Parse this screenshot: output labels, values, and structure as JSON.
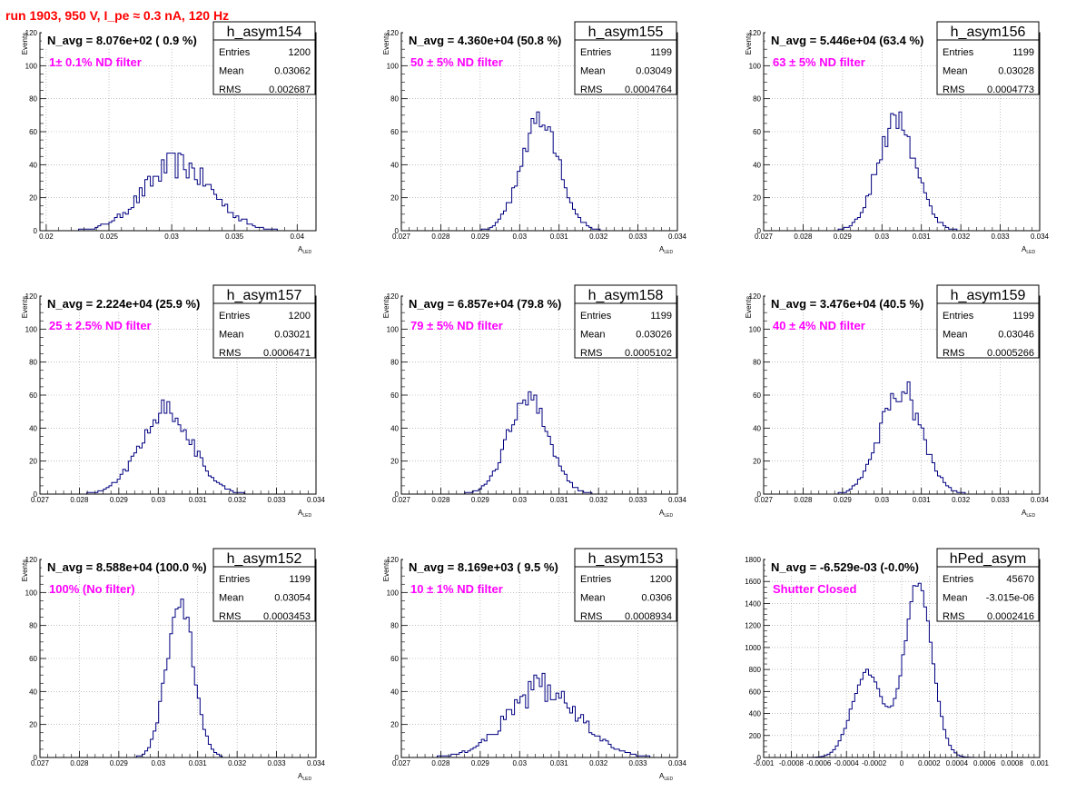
{
  "run_title": "run 1903,   950 V, I_pe ≈ 0.3 nA, 120 Hz",
  "chart_data": [
    {
      "type": "histogram",
      "name": "h_asym154",
      "title": "N_avg = 8.076e+02 ( 0.9 %)",
      "annotation": "1± 0.1% ND filter",
      "stats": [
        {
          "label": "Entries",
          "value": "1200"
        },
        {
          "label": "Mean",
          "value": "0.03062"
        },
        {
          "label": "RMS",
          "value": "0.002687"
        }
      ],
      "xlabel": "A",
      "xlabel_sub": "LED",
      "ylabel": "Events",
      "xlim": [
        0.0195,
        0.0415
      ],
      "ylim": [
        0,
        120
      ],
      "xticks": [
        0.02,
        0.025,
        0.03,
        0.035,
        0.04
      ],
      "xtick_labels": [
        "0.02",
        "0.025",
        "0.03",
        "0.035",
        "0.04"
      ],
      "yticks": [
        0,
        20,
        40,
        60,
        80,
        100,
        120
      ],
      "ytick_labels": [
        "0",
        "20",
        "40",
        "60",
        "80",
        "100",
        "120"
      ],
      "peaks": [
        {
          "mu": 0.0305,
          "sigma": 0.0027,
          "amp": 40
        }
      ],
      "noise": 0.22
    },
    {
      "type": "histogram",
      "name": "h_asym155",
      "title": "N_avg = 4.360e+04 (50.8 %)",
      "annotation": "50 ± 5% ND filter",
      "stats": [
        {
          "label": "Entries",
          "value": "1199"
        },
        {
          "label": "Mean",
          "value": "0.03049"
        },
        {
          "label": "RMS",
          "value": "0.0004764"
        }
      ],
      "xlabel": "A",
      "xlabel_sub": "LED",
      "ylabel": "Events",
      "xlim": [
        0.027,
        0.034
      ],
      "ylim": [
        0,
        120
      ],
      "xticks": [
        0.027,
        0.028,
        0.029,
        0.03,
        0.031,
        0.032,
        0.033,
        0.034
      ],
      "xtick_labels": [
        "0.027",
        "0.028",
        "0.029",
        "0.03",
        "0.031",
        "0.032",
        "0.033",
        "0.034"
      ],
      "yticks": [
        0,
        20,
        40,
        60,
        80,
        100,
        120
      ],
      "ytick_labels": [
        "0",
        "20",
        "40",
        "60",
        "80",
        "100",
        "120"
      ],
      "peaks": [
        {
          "mu": 0.03052,
          "sigma": 0.00048,
          "amp": 68
        }
      ],
      "noise": 0.12
    },
    {
      "type": "histogram",
      "name": "h_asym156",
      "title": "N_avg = 5.446e+04 (63.4 %)",
      "annotation": "63 ± 5% ND filter",
      "stats": [
        {
          "label": "Entries",
          "value": "1199"
        },
        {
          "label": "Mean",
          "value": "0.03028"
        },
        {
          "label": "RMS",
          "value": "0.0004773"
        }
      ],
      "xlabel": "A",
      "xlabel_sub": "LED",
      "ylabel": "Events",
      "xlim": [
        0.027,
        0.034
      ],
      "ylim": [
        0,
        120
      ],
      "xticks": [
        0.027,
        0.028,
        0.029,
        0.03,
        0.031,
        0.032,
        0.033,
        0.034
      ],
      "xtick_labels": [
        "0.027",
        "0.028",
        "0.029",
        "0.03",
        "0.031",
        "0.032",
        "0.033",
        "0.034"
      ],
      "yticks": [
        0,
        20,
        40,
        60,
        80,
        100,
        120
      ],
      "ytick_labels": [
        "0",
        "20",
        "40",
        "60",
        "80",
        "100",
        "120"
      ],
      "peaks": [
        {
          "mu": 0.03038,
          "sigma": 0.00048,
          "amp": 68
        }
      ],
      "noise": 0.14
    },
    {
      "type": "histogram",
      "name": "h_asym157",
      "title": "N_avg = 2.224e+04 (25.9 %)",
      "annotation": "25 ± 2.5% ND filter",
      "stats": [
        {
          "label": "Entries",
          "value": "1200"
        },
        {
          "label": "Mean",
          "value": "0.03021"
        },
        {
          "label": "RMS",
          "value": "0.0006471"
        }
      ],
      "xlabel": "A",
      "xlabel_sub": "LED",
      "ylabel": "Events",
      "xlim": [
        0.027,
        0.034
      ],
      "ylim": [
        0,
        120
      ],
      "xticks": [
        0.027,
        0.028,
        0.029,
        0.03,
        0.031,
        0.032,
        0.033,
        0.034
      ],
      "xtick_labels": [
        "0.027",
        "0.028",
        "0.029",
        "0.03",
        "0.031",
        "0.032",
        "0.033",
        "0.034"
      ],
      "yticks": [
        0,
        20,
        40,
        60,
        80,
        100,
        120
      ],
      "ytick_labels": [
        "0",
        "20",
        "40",
        "60",
        "80",
        "100",
        "120"
      ],
      "peaks": [
        {
          "mu": 0.0302,
          "sigma": 0.00065,
          "amp": 52
        }
      ],
      "noise": 0.14
    },
    {
      "type": "histogram",
      "name": "h_asym158",
      "title": "N_avg = 6.857e+04 (79.8 %)",
      "annotation": "79 ± 5% ND filter",
      "stats": [
        {
          "label": "Entries",
          "value": "1199"
        },
        {
          "label": "Mean",
          "value": "0.03026"
        },
        {
          "label": "RMS",
          "value": "0.0005102"
        }
      ],
      "xlabel": "A",
      "xlabel_sub": "LED",
      "ylabel": "Events",
      "xlim": [
        0.027,
        0.034
      ],
      "ylim": [
        0,
        120
      ],
      "xticks": [
        0.027,
        0.028,
        0.029,
        0.03,
        0.031,
        0.032,
        0.033,
        0.034
      ],
      "xtick_labels": [
        "0.027",
        "0.028",
        "0.029",
        "0.03",
        "0.031",
        "0.032",
        "0.033",
        "0.034"
      ],
      "yticks": [
        0,
        20,
        40,
        60,
        80,
        100,
        120
      ],
      "ytick_labels": [
        "0",
        "20",
        "40",
        "60",
        "80",
        "100",
        "120"
      ],
      "peaks": [
        {
          "mu": 0.03022,
          "sigma": 0.00051,
          "amp": 60
        }
      ],
      "noise": 0.12
    },
    {
      "type": "histogram",
      "name": "h_asym159",
      "title": "N_avg = 3.476e+04 (40.5 %)",
      "annotation": "40 ± 4% ND filter",
      "stats": [
        {
          "label": "Entries",
          "value": "1199"
        },
        {
          "label": "Mean",
          "value": "0.03046"
        },
        {
          "label": "RMS",
          "value": "0.0005266"
        }
      ],
      "xlabel": "A",
      "xlabel_sub": "LED",
      "ylabel": "Events",
      "xlim": [
        0.027,
        0.034
      ],
      "ylim": [
        0,
        120
      ],
      "xticks": [
        0.027,
        0.028,
        0.029,
        0.03,
        0.031,
        0.032,
        0.033,
        0.034
      ],
      "xtick_labels": [
        "0.027",
        "0.028",
        "0.029",
        "0.03",
        "0.031",
        "0.032",
        "0.033",
        "0.034"
      ],
      "yticks": [
        0,
        20,
        40,
        60,
        80,
        100,
        120
      ],
      "ytick_labels": [
        "0",
        "20",
        "40",
        "60",
        "80",
        "100",
        "120"
      ],
      "peaks": [
        {
          "mu": 0.03048,
          "sigma": 0.00052,
          "amp": 64
        }
      ],
      "noise": 0.14
    },
    {
      "type": "histogram",
      "name": "h_asym152",
      "title": "N_avg = 8.588e+04 (100.0 %)",
      "annotation": "100% (No filter)",
      "stats": [
        {
          "label": "Entries",
          "value": "1199"
        },
        {
          "label": "Mean",
          "value": "0.03054"
        },
        {
          "label": "RMS",
          "value": "0.0003453"
        }
      ],
      "xlabel": "A",
      "xlabel_sub": "LED",
      "ylabel": "Events",
      "xlim": [
        0.027,
        0.034
      ],
      "ylim": [
        0,
        120
      ],
      "xticks": [
        0.027,
        0.028,
        0.029,
        0.03,
        0.031,
        0.032,
        0.033,
        0.034
      ],
      "xtick_labels": [
        "0.027",
        "0.028",
        "0.029",
        "0.03",
        "0.031",
        "0.032",
        "0.033",
        "0.034"
      ],
      "yticks": [
        0,
        20,
        40,
        60,
        80,
        100,
        120
      ],
      "ytick_labels": [
        "0",
        "20",
        "40",
        "60",
        "80",
        "100",
        "120"
      ],
      "peaks": [
        {
          "mu": 0.03055,
          "sigma": 0.00034,
          "amp": 95
        }
      ],
      "noise": 0.08
    },
    {
      "type": "histogram",
      "name": "h_asym153",
      "title": "N_avg = 8.169e+03 ( 9.5 %)",
      "annotation": "10 ± 1% ND filter",
      "stats": [
        {
          "label": "Entries",
          "value": "1200"
        },
        {
          "label": "Mean",
          "value": "0.0306"
        },
        {
          "label": "RMS",
          "value": "0.0008934"
        }
      ],
      "xlabel": "A",
      "xlabel_sub": "LED",
      "ylabel": "Events",
      "xlim": [
        0.027,
        0.034
      ],
      "ylim": [
        0,
        120
      ],
      "xticks": [
        0.027,
        0.028,
        0.029,
        0.03,
        0.031,
        0.032,
        0.033,
        0.034
      ],
      "xtick_labels": [
        "0.027",
        "0.028",
        "0.029",
        "0.03",
        "0.031",
        "0.032",
        "0.033",
        "0.034"
      ],
      "yticks": [
        0,
        20,
        40,
        60,
        80,
        100,
        120
      ],
      "ytick_labels": [
        "0",
        "20",
        "40",
        "60",
        "80",
        "100",
        "120"
      ],
      "peaks": [
        {
          "mu": 0.0306,
          "sigma": 0.0009,
          "amp": 42
        }
      ],
      "noise": 0.22
    },
    {
      "type": "histogram",
      "name": "hPed_asym",
      "title": "N_avg = -6.529e-03 (-0.0%)",
      "annotation": "Shutter Closed",
      "stats": [
        {
          "label": "Entries",
          "value": "45670"
        },
        {
          "label": "Mean",
          "value": "-3.015e-06"
        },
        {
          "label": "RMS",
          "value": "0.0002416"
        }
      ],
      "xlabel": "",
      "xlabel_sub": "",
      "ylabel": "",
      "xlim": [
        -0.001,
        0.001
      ],
      "ylim": [
        0,
        1800
      ],
      "xticks": [
        -0.001,
        -0.0008,
        -0.0006,
        -0.0004,
        -0.0002,
        0,
        0.0002,
        0.0004,
        0.0006,
        0.0008,
        0.001
      ],
      "xtick_labels": [
        "-0.001",
        "-0.0008",
        "-0.0006",
        "-0.0004",
        "-0.0002",
        "0",
        "0.0002",
        "0.0004",
        "0.0006",
        "0.0008",
        "0.001"
      ],
      "yticks": [
        0,
        200,
        400,
        600,
        800,
        1000,
        1200,
        1400,
        1600,
        1800
      ],
      "ytick_labels": [
        "0",
        "200",
        "400",
        "600",
        "800",
        "1000",
        "1200",
        "1400",
        "1600",
        "1800"
      ],
      "peaks": [
        {
          "mu": -0.00025,
          "sigma": 0.00011,
          "amp": 780
        },
        {
          "mu": 0.00012,
          "sigma": 0.0001,
          "amp": 1580
        }
      ],
      "noise": 0.03
    }
  ]
}
